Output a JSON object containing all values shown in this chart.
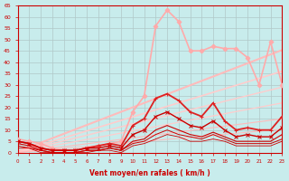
{
  "xlabel": "Vent moyen/en rafales ( km/h )",
  "xlim": [
    0,
    23
  ],
  "ylim": [
    0,
    65
  ],
  "yticks": [
    0,
    5,
    10,
    15,
    20,
    25,
    30,
    35,
    40,
    45,
    50,
    55,
    60,
    65
  ],
  "xticks": [
    0,
    1,
    2,
    3,
    4,
    5,
    6,
    7,
    8,
    9,
    10,
    11,
    12,
    13,
    14,
    15,
    16,
    17,
    18,
    19,
    20,
    21,
    22,
    23
  ],
  "background_color": "#c8ecec",
  "grid_color": "#b0c8c8",
  "linear_lines": [
    {
      "slope": 1.95,
      "intercept": 0.5,
      "color": "#ffbbbb",
      "lw": 1.5
    },
    {
      "slope": 1.55,
      "intercept": 0.3,
      "color": "#ffcccc",
      "lw": 1.2
    },
    {
      "slope": 1.25,
      "intercept": 0.2,
      "color": "#ffcccc",
      "lw": 1.0
    },
    {
      "slope": 0.95,
      "intercept": 0.1,
      "color": "#ffcccc",
      "lw": 0.9
    },
    {
      "slope": 0.65,
      "intercept": 0.0,
      "color": "#ffbbbb",
      "lw": 0.8
    },
    {
      "slope": 0.45,
      "intercept": 0.0,
      "color": "#ffbbbb",
      "lw": 0.7
    }
  ],
  "series": [
    {
      "x": [
        0,
        1,
        2,
        3,
        4,
        5,
        6,
        7,
        8,
        9,
        10,
        11,
        12,
        13,
        14,
        15,
        16,
        17,
        18,
        19,
        20,
        21,
        22,
        23
      ],
      "y": [
        6,
        5,
        4,
        2,
        1,
        1,
        2,
        3,
        4,
        5,
        18,
        25,
        56,
        63,
        58,
        45,
        45,
        47,
        46,
        46,
        42,
        30,
        49,
        30
      ],
      "color": "#ffaaaa",
      "lw": 1.2,
      "marker": "D",
      "ms": 2.5,
      "alpha": 1.0
    },
    {
      "x": [
        0,
        1,
        2,
        3,
        4,
        5,
        6,
        7,
        8,
        9,
        10,
        11,
        12,
        13,
        14,
        15,
        16,
        17,
        18,
        19,
        20,
        21,
        22,
        23
      ],
      "y": [
        5,
        4,
        2,
        1,
        1,
        1,
        2,
        3,
        4,
        3,
        12,
        15,
        24,
        26,
        23,
        18,
        16,
        22,
        14,
        10,
        11,
        10,
        10,
        16
      ],
      "color": "#dd2222",
      "lw": 1.3,
      "marker": "+",
      "ms": 3.5,
      "alpha": 1.0
    },
    {
      "x": [
        0,
        1,
        2,
        3,
        4,
        5,
        6,
        7,
        8,
        9,
        10,
        11,
        12,
        13,
        14,
        15,
        16,
        17,
        18,
        19,
        20,
        21,
        22,
        23
      ],
      "y": [
        5,
        4,
        2,
        1,
        1,
        1,
        2,
        2,
        3,
        2,
        8,
        10,
        16,
        18,
        15,
        12,
        11,
        14,
        10,
        7,
        8,
        7,
        7,
        11
      ],
      "color": "#cc0000",
      "lw": 1.0,
      "marker": "x",
      "ms": 2.5,
      "alpha": 1.0
    },
    {
      "x": [
        0,
        1,
        2,
        3,
        4,
        5,
        6,
        7,
        8,
        9,
        10,
        11,
        12,
        13,
        14,
        15,
        16,
        17,
        18,
        19,
        20,
        21,
        22,
        23
      ],
      "y": [
        4,
        3,
        1,
        0,
        0,
        0,
        1,
        1,
        2,
        1,
        5,
        6,
        10,
        12,
        10,
        8,
        7,
        9,
        7,
        5,
        5,
        5,
        5,
        8
      ],
      "color": "#cc0000",
      "lw": 0.8,
      "marker": null,
      "ms": 0,
      "alpha": 1.0
    },
    {
      "x": [
        0,
        1,
        2,
        3,
        4,
        5,
        6,
        7,
        8,
        9,
        10,
        11,
        12,
        13,
        14,
        15,
        16,
        17,
        18,
        19,
        20,
        21,
        22,
        23
      ],
      "y": [
        3,
        2,
        1,
        0,
        0,
        0,
        1,
        1,
        2,
        1,
        4,
        5,
        8,
        10,
        8,
        7,
        6,
        8,
        6,
        4,
        4,
        4,
        4,
        6
      ],
      "color": "#cc0000",
      "lw": 0.7,
      "marker": null,
      "ms": 0,
      "alpha": 1.0
    },
    {
      "x": [
        0,
        1,
        2,
        3,
        4,
        5,
        6,
        7,
        8,
        9,
        10,
        11,
        12,
        13,
        14,
        15,
        16,
        17,
        18,
        19,
        20,
        21,
        22,
        23
      ],
      "y": [
        2,
        2,
        0,
        0,
        0,
        0,
        0,
        1,
        1,
        0,
        3,
        4,
        6,
        8,
        7,
        5,
        5,
        6,
        5,
        3,
        3,
        3,
        3,
        5
      ],
      "color": "#cc0000",
      "lw": 0.6,
      "marker": null,
      "ms": 0,
      "alpha": 1.0
    }
  ]
}
